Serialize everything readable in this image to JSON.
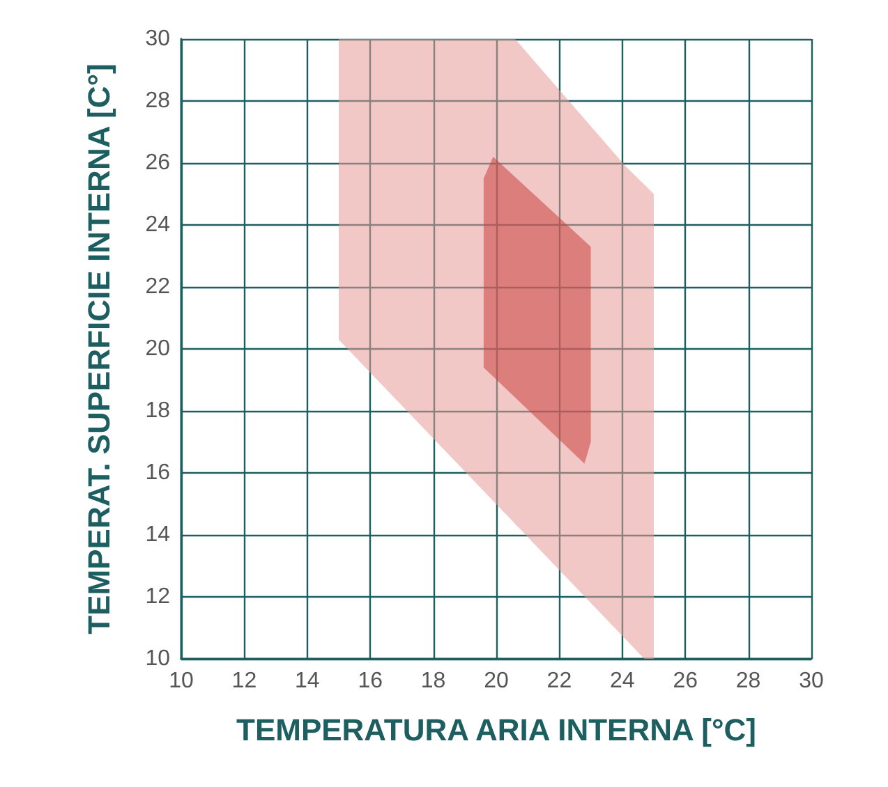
{
  "chart_data": {
    "type": "area",
    "xlabel": "TEMPERATURA ARIA INTERNA [°C]",
    "ylabel": "TEMPERAT. SUPERFICIE INTERNA [C°]",
    "xlim": [
      10,
      30
    ],
    "ylim": [
      10,
      30
    ],
    "xticks": [
      10,
      12,
      14,
      16,
      18,
      20,
      22,
      24,
      26,
      28,
      30
    ],
    "yticks": [
      10,
      12,
      14,
      16,
      18,
      20,
      22,
      24,
      26,
      28,
      30
    ],
    "grid": true,
    "series": [
      {
        "color": "#e69a98",
        "x": [
          15,
          20.6,
          24.1,
          25,
          25,
          24.7,
          15
        ],
        "values": [
          30,
          30,
          25.9,
          25,
          10,
          10,
          20.3
        ]
      },
      {
        "color": "#c8423f",
        "x": [
          19.6,
          19.9,
          23,
          23,
          22.8,
          19.6
        ],
        "values": [
          25.5,
          26.2,
          23.3,
          17,
          16.3,
          19.4
        ]
      }
    ]
  }
}
